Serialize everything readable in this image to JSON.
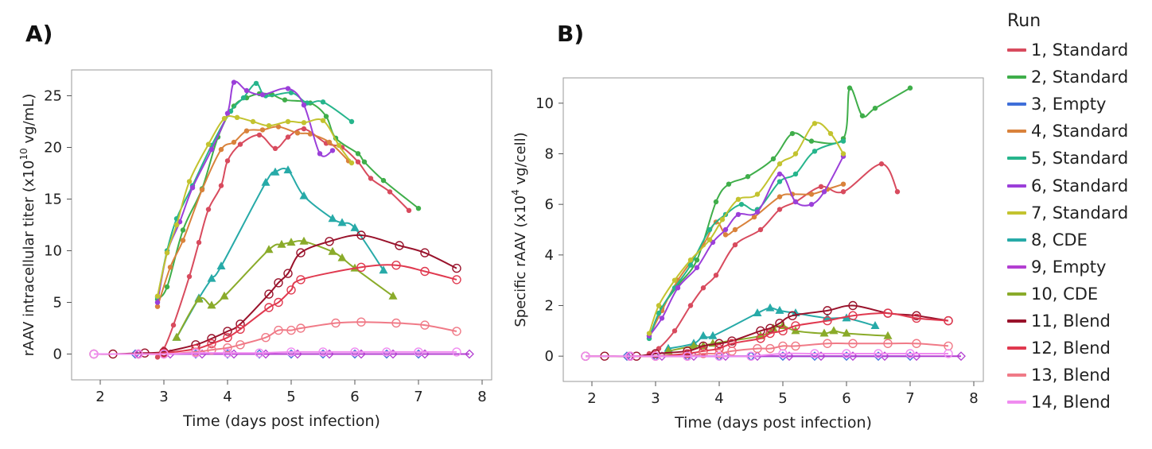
{
  "legend": {
    "title": "Run"
  },
  "runs": [
    {
      "label": "1, Standard",
      "color": "#d84b5e",
      "marker": "dot"
    },
    {
      "label": "2, Standard",
      "color": "#3fae4a",
      "marker": "dot"
    },
    {
      "label": "3, Empty",
      "color": "#3f6fd9",
      "marker": "diamond"
    },
    {
      "label": "4, Standard",
      "color": "#d9823b",
      "marker": "dot"
    },
    {
      "label": "5, Standard",
      "color": "#26b58c",
      "marker": "dot"
    },
    {
      "label": "6, Standard",
      "color": "#9b3fd9",
      "marker": "dot"
    },
    {
      "label": "7, Standard",
      "color": "#c3c32f",
      "marker": "dot"
    },
    {
      "label": "8, CDE",
      "color": "#27aaa8",
      "marker": "triangle"
    },
    {
      "label": "9, Empty",
      "color": "#b33fd1",
      "marker": "diamond"
    },
    {
      "label": "10, CDE",
      "color": "#8aab2a",
      "marker": "triangle"
    },
    {
      "label": "11, Blend",
      "color": "#99122b",
      "marker": "circle"
    },
    {
      "label": "12, Blend",
      "color": "#e0394f",
      "marker": "circle"
    },
    {
      "label": "13, Blend",
      "color": "#f07a87",
      "marker": "circle"
    },
    {
      "label": "14, Blend",
      "color": "#f08cf0",
      "marker": "circle"
    }
  ],
  "chart_data": [
    {
      "panel_label": "A)",
      "type": "scatter",
      "xlabel": "Time (days post infection)",
      "ylabel": "rAAV intracellular titer (x10",
      "ylabel_sup": "10",
      "ylabel_suffix": " vg/mL)",
      "xlim": [
        1.55,
        8.15
      ],
      "ylim": [
        -2.5,
        27.5
      ],
      "xticks": [
        2,
        3,
        4,
        5,
        6,
        7,
        8
      ],
      "yticks": [
        0,
        5,
        10,
        15,
        20,
        25
      ],
      "series": [
        {
          "name": "1, Standard",
          "x": [
            2.9,
            3.0,
            3.15,
            3.4,
            3.55,
            3.7,
            3.9,
            4.0,
            4.2,
            4.5,
            4.75,
            4.95,
            5.2,
            5.55,
            5.8,
            6.05,
            6.25,
            6.55,
            6.85
          ],
          "y": [
            -0.3,
            0.5,
            2.8,
            7.5,
            10.8,
            14.0,
            16.3,
            18.7,
            20.3,
            21.2,
            19.9,
            21.0,
            21.8,
            20.4,
            20.0,
            18.6,
            17.0,
            15.7,
            13.9
          ]
        },
        {
          "name": "2, Standard",
          "x": [
            2.9,
            3.05,
            3.3,
            3.6,
            3.85,
            4.1,
            4.3,
            4.5,
            4.7,
            4.9,
            5.3,
            5.55,
            5.7,
            6.05,
            6.15,
            6.45,
            7.0
          ],
          "y": [
            5.3,
            6.5,
            12.0,
            16.0,
            21.0,
            24.0,
            24.8,
            25.2,
            25.1,
            24.6,
            24.3,
            23.0,
            20.9,
            19.4,
            18.6,
            16.8,
            14.1
          ]
        },
        {
          "name": "3, Empty",
          "x": [
            2.55,
            3.0,
            3.5,
            4.0,
            4.5,
            5.0,
            5.5,
            6.0,
            6.5,
            7.0
          ],
          "y": [
            0,
            0,
            0,
            0,
            0,
            0,
            0,
            0,
            0,
            0
          ]
        },
        {
          "name": "4, Standard",
          "x": [
            2.9,
            3.1,
            3.3,
            3.6,
            3.9,
            4.1,
            4.3,
            4.55,
            4.8,
            5.1,
            5.3,
            5.6,
            5.9
          ],
          "y": [
            4.6,
            8.4,
            11.0,
            15.9,
            19.8,
            20.5,
            21.6,
            21.7,
            22.0,
            21.4,
            21.3,
            20.5,
            18.7
          ]
        },
        {
          "name": "5, Standard",
          "x": [
            2.9,
            3.05,
            3.2,
            3.45,
            3.75,
            4.05,
            4.25,
            4.45,
            4.6,
            5.0,
            5.25,
            5.5,
            5.95
          ],
          "y": [
            5.5,
            10.0,
            13.1,
            16.3,
            20.2,
            23.5,
            24.8,
            26.2,
            25.0,
            25.3,
            24.3,
            24.4,
            22.5
          ]
        },
        {
          "name": "6, Standard",
          "x": [
            2.9,
            3.05,
            3.25,
            3.45,
            3.75,
            4.0,
            4.1,
            4.3,
            4.55,
            4.95,
            5.2,
            5.45,
            5.65
          ],
          "y": [
            5.0,
            9.8,
            12.8,
            16.1,
            19.8,
            23.3,
            26.3,
            25.5,
            25.1,
            25.7,
            24.1,
            19.4,
            19.7
          ]
        },
        {
          "name": "7, Standard",
          "x": [
            2.9,
            3.05,
            3.2,
            3.4,
            3.7,
            3.95,
            4.15,
            4.4,
            4.65,
            4.95,
            5.2,
            5.5,
            5.75,
            5.95
          ],
          "y": [
            5.6,
            9.8,
            12.5,
            16.7,
            20.3,
            22.8,
            22.9,
            22.5,
            22.1,
            22.5,
            22.4,
            22.6,
            20.2,
            18.5
          ]
        },
        {
          "name": "8, CDE",
          "x": [
            3.2,
            3.55,
            3.75,
            3.9,
            4.6,
            4.75,
            4.95,
            5.2,
            5.65,
            5.8,
            6.0,
            6.45
          ],
          "y": [
            1.6,
            5.4,
            7.3,
            8.5,
            16.6,
            17.6,
            17.8,
            15.3,
            13.1,
            12.7,
            12.2,
            8.1
          ]
        },
        {
          "name": "9, Empty",
          "x": [
            2.6,
            3.1,
            3.6,
            4.1,
            4.6,
            5.1,
            5.6,
            6.1,
            6.6,
            7.1,
            7.8
          ],
          "y": [
            0,
            0,
            0,
            0,
            0,
            0,
            0,
            0,
            0,
            0,
            0
          ]
        },
        {
          "name": "10, CDE",
          "x": [
            3.2,
            3.55,
            3.75,
            3.95,
            4.65,
            4.85,
            5.0,
            5.2,
            5.65,
            5.8,
            6.0,
            6.6
          ],
          "y": [
            1.6,
            5.3,
            4.7,
            5.6,
            10.1,
            10.6,
            10.8,
            10.9,
            9.9,
            9.3,
            8.3,
            5.6
          ]
        },
        {
          "name": "11, Blend",
          "x": [
            1.9,
            2.2,
            2.7,
            3.0,
            3.5,
            3.75,
            4.0,
            4.2,
            4.65,
            4.8,
            4.95,
            5.15,
            5.6,
            6.1,
            6.7,
            7.1,
            7.6
          ],
          "y": [
            0,
            0,
            0.1,
            0.2,
            0.9,
            1.5,
            2.2,
            2.9,
            5.8,
            6.9,
            7.8,
            9.8,
            10.9,
            11.5,
            10.5,
            9.8,
            8.3
          ]
        },
        {
          "name": "12, Blend",
          "x": [
            2.6,
            3.0,
            3.5,
            3.75,
            4.0,
            4.2,
            4.65,
            4.8,
            5.0,
            5.15,
            6.1,
            6.65,
            7.1,
            7.6
          ],
          "y": [
            0,
            0.1,
            0.5,
            1.0,
            1.6,
            2.4,
            4.5,
            5.0,
            6.2,
            7.2,
            8.4,
            8.6,
            8.0,
            7.2
          ]
        },
        {
          "name": "13, Blend",
          "x": [
            2.6,
            3.0,
            3.5,
            3.75,
            4.0,
            4.2,
            4.6,
            4.8,
            5.0,
            5.15,
            5.7,
            6.1,
            6.65,
            7.1,
            7.6
          ],
          "y": [
            0,
            0,
            0.2,
            0.4,
            0.6,
            0.9,
            1.6,
            2.3,
            2.3,
            2.5,
            3.0,
            3.1,
            3.0,
            2.8,
            2.2
          ]
        },
        {
          "name": "14, Blend",
          "x": [
            1.9,
            2.6,
            3.0,
            3.5,
            4.0,
            4.5,
            5.0,
            5.5,
            6.0,
            6.5,
            7.0,
            7.6
          ],
          "y": [
            0,
            0,
            0,
            0.1,
            0.1,
            0.1,
            0.2,
            0.2,
            0.2,
            0.2,
            0.2,
            0.2
          ]
        }
      ]
    },
    {
      "panel_label": "B)",
      "type": "scatter",
      "xlabel": "Time (days post infection)",
      "ylabel": "Specific rAAV (x10",
      "ylabel_sup": "4",
      "ylabel_suffix": " vg/cell)",
      "xlim": [
        1.55,
        8.15
      ],
      "ylim": [
        -1.0,
        11.0
      ],
      "xticks": [
        2,
        3,
        4,
        5,
        6,
        7,
        8
      ],
      "yticks": [
        0,
        2,
        4,
        6,
        8,
        10
      ],
      "series": [
        {
          "name": "1, Standard",
          "x": [
            2.9,
            3.05,
            3.3,
            3.55,
            3.75,
            3.95,
            4.25,
            4.65,
            4.95,
            5.2,
            5.6,
            5.95,
            6.55,
            6.8
          ],
          "y": [
            0.1,
            0.3,
            1.0,
            2.0,
            2.7,
            3.2,
            4.4,
            5.0,
            5.8,
            6.1,
            6.7,
            6.5,
            7.6,
            6.5
          ]
        },
        {
          "name": "2, Standard",
          "x": [
            2.9,
            3.1,
            3.35,
            3.65,
            3.95,
            4.15,
            4.45,
            4.85,
            5.15,
            5.45,
            5.95,
            6.05,
            6.25,
            6.45,
            7.0
          ],
          "y": [
            0.7,
            1.9,
            2.8,
            3.8,
            6.1,
            6.8,
            7.1,
            7.8,
            8.8,
            8.5,
            8.6,
            10.6,
            9.5,
            9.8,
            10.6
          ]
        },
        {
          "name": "3, Empty",
          "x": [
            2.55,
            3.0,
            3.5,
            4.0,
            4.5,
            5.0,
            5.5,
            6.0,
            6.5,
            7.0
          ],
          "y": [
            0,
            0,
            0,
            0,
            0,
            0,
            0,
            0,
            0,
            0
          ]
        },
        {
          "name": "4, Standard",
          "x": [
            2.9,
            3.1,
            3.35,
            3.75,
            3.95,
            4.1,
            4.25,
            4.55,
            4.95,
            5.15,
            5.45,
            5.7,
            5.95
          ],
          "y": [
            0.8,
            1.8,
            3.0,
            4.4,
            5.3,
            4.8,
            5.0,
            5.5,
            6.3,
            6.4,
            6.4,
            6.6,
            6.8
          ]
        },
        {
          "name": "5, Standard",
          "x": [
            2.9,
            3.05,
            3.3,
            3.55,
            3.85,
            4.1,
            4.35,
            4.6,
            4.95,
            5.2,
            5.5,
            5.95
          ],
          "y": [
            0.7,
            1.7,
            2.7,
            3.6,
            5.0,
            5.6,
            6.0,
            5.8,
            6.9,
            7.2,
            8.1,
            8.5
          ]
        },
        {
          "name": "6, Standard",
          "x": [
            2.9,
            3.1,
            3.35,
            3.65,
            3.9,
            4.1,
            4.3,
            4.6,
            4.95,
            5.2,
            5.45,
            5.65,
            5.95
          ],
          "y": [
            0.8,
            1.5,
            2.7,
            3.5,
            4.5,
            5.0,
            5.6,
            5.7,
            7.2,
            6.1,
            6.0,
            6.5,
            7.9
          ]
        },
        {
          "name": "7, Standard",
          "x": [
            2.9,
            3.05,
            3.3,
            3.55,
            3.85,
            4.05,
            4.3,
            4.6,
            4.95,
            5.2,
            5.5,
            5.75,
            5.95
          ],
          "y": [
            0.9,
            2.0,
            3.0,
            3.8,
            4.6,
            5.4,
            6.2,
            6.4,
            7.6,
            8.0,
            9.2,
            8.8,
            8.0
          ]
        },
        {
          "name": "8, CDE",
          "x": [
            3.2,
            3.6,
            3.75,
            3.9,
            4.6,
            4.8,
            4.95,
            5.2,
            5.7,
            6.0,
            6.45
          ],
          "y": [
            0.3,
            0.5,
            0.8,
            0.8,
            1.7,
            1.9,
            1.8,
            1.7,
            1.5,
            1.5,
            1.2
          ]
        },
        {
          "name": "9, Empty",
          "x": [
            2.6,
            3.1,
            3.6,
            4.1,
            4.6,
            5.1,
            5.6,
            6.1,
            6.6,
            7.1,
            7.8
          ],
          "y": [
            0,
            0,
            0,
            0,
            0,
            0,
            0,
            0,
            0,
            0,
            0
          ]
        },
        {
          "name": "10, CDE",
          "x": [
            3.2,
            3.6,
            3.75,
            3.9,
            4.65,
            4.85,
            5.0,
            5.2,
            5.65,
            5.8,
            6.0,
            6.65
          ],
          "y": [
            0.2,
            0.4,
            0.4,
            0.5,
            0.8,
            1.1,
            1.2,
            1.0,
            0.9,
            1.0,
            0.9,
            0.8
          ]
        },
        {
          "name": "11, Blend",
          "x": [
            1.9,
            2.2,
            2.7,
            3.0,
            3.5,
            3.75,
            4.0,
            4.2,
            4.65,
            4.8,
            4.95,
            5.15,
            5.7,
            6.1,
            6.65,
            7.1,
            7.6
          ],
          "y": [
            0,
            0,
            0,
            0.1,
            0.2,
            0.4,
            0.5,
            0.6,
            1.0,
            1.1,
            1.3,
            1.6,
            1.8,
            2.0,
            1.7,
            1.6,
            1.4
          ]
        },
        {
          "name": "12, Blend",
          "x": [
            2.6,
            3.0,
            3.5,
            3.75,
            4.0,
            4.2,
            4.65,
            4.8,
            5.0,
            5.2,
            5.7,
            6.1,
            6.65,
            7.1,
            7.6
          ],
          "y": [
            0,
            0,
            0.1,
            0.2,
            0.3,
            0.5,
            0.7,
            0.9,
            1.0,
            1.2,
            1.4,
            1.6,
            1.7,
            1.5,
            1.4
          ]
        },
        {
          "name": "13, Blend",
          "x": [
            2.6,
            3.0,
            3.5,
            3.75,
            4.0,
            4.2,
            4.6,
            4.8,
            5.0,
            5.2,
            5.7,
            6.1,
            6.65,
            7.1,
            7.6
          ],
          "y": [
            0,
            0,
            0,
            0.1,
            0.1,
            0.2,
            0.3,
            0.3,
            0.4,
            0.4,
            0.5,
            0.5,
            0.5,
            0.5,
            0.4
          ]
        },
        {
          "name": "14, Blend",
          "x": [
            1.9,
            2.6,
            3.0,
            3.5,
            4.0,
            4.5,
            5.0,
            5.5,
            6.0,
            6.5,
            7.0,
            7.6
          ],
          "y": [
            0,
            0,
            0,
            0,
            0,
            0,
            0.1,
            0.1,
            0.1,
            0.1,
            0.1,
            0.1
          ]
        }
      ]
    }
  ]
}
